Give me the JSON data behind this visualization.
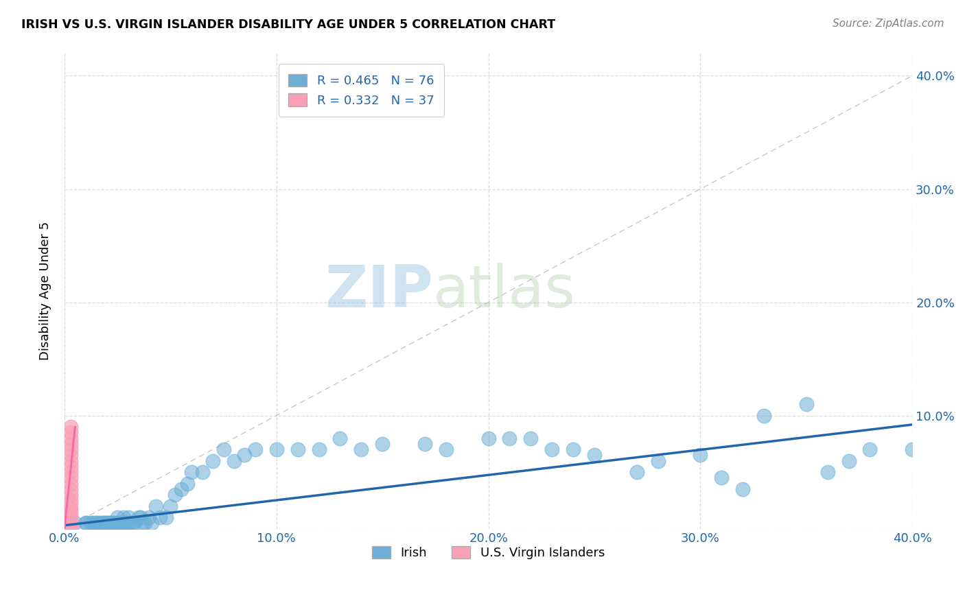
{
  "title": "IRISH VS U.S. VIRGIN ISLANDER DISABILITY AGE UNDER 5 CORRELATION CHART",
  "source": "Source: ZipAtlas.com",
  "ylabel": "Disability Age Under 5",
  "xlabel_blue": "Irish",
  "xlabel_pink": "U.S. Virgin Islanders",
  "xlim": [
    0.0,
    0.4
  ],
  "ylim": [
    0.0,
    0.42
  ],
  "xticks": [
    0.0,
    0.1,
    0.2,
    0.3,
    0.4
  ],
  "yticks": [
    0.0,
    0.1,
    0.2,
    0.3,
    0.4
  ],
  "xtick_labels": [
    "0.0%",
    "10.0%",
    "20.0%",
    "30.0%",
    "40.0%"
  ],
  "ytick_labels": [
    "",
    "10.0%",
    "20.0%",
    "30.0%",
    "40.0%"
  ],
  "blue_color": "#6baed6",
  "pink_color": "#fa9fb5",
  "blue_line_color": "#2166ac",
  "pink_line_color": "#f768a1",
  "grid_color": "#dddddd",
  "R_blue": 0.465,
  "N_blue": 76,
  "R_pink": 0.332,
  "N_pink": 37,
  "blue_scatter_x": [
    0.005,
    0.01,
    0.01,
    0.012,
    0.013,
    0.015,
    0.015,
    0.016,
    0.017,
    0.018,
    0.018,
    0.019,
    0.02,
    0.02,
    0.021,
    0.022,
    0.022,
    0.023,
    0.024,
    0.025,
    0.025,
    0.026,
    0.027,
    0.028,
    0.028,
    0.029,
    0.03,
    0.03,
    0.031,
    0.032,
    0.033,
    0.035,
    0.036,
    0.037,
    0.038,
    0.04,
    0.041,
    0.043,
    0.045,
    0.048,
    0.05,
    0.052,
    0.055,
    0.058,
    0.06,
    0.065,
    0.07,
    0.075,
    0.08,
    0.085,
    0.09,
    0.1,
    0.11,
    0.12,
    0.13,
    0.14,
    0.15,
    0.17,
    0.18,
    0.2,
    0.21,
    0.22,
    0.23,
    0.24,
    0.25,
    0.27,
    0.28,
    0.3,
    0.31,
    0.32,
    0.33,
    0.35,
    0.36,
    0.37,
    0.38,
    0.4
  ],
  "blue_scatter_y": [
    0.005,
    0.005,
    0.005,
    0.005,
    0.005,
    0.005,
    0.005,
    0.005,
    0.005,
    0.005,
    0.005,
    0.005,
    0.005,
    0.005,
    0.005,
    0.005,
    0.005,
    0.005,
    0.005,
    0.005,
    0.01,
    0.005,
    0.005,
    0.005,
    0.01,
    0.005,
    0.005,
    0.01,
    0.005,
    0.005,
    0.005,
    0.01,
    0.01,
    0.005,
    0.005,
    0.01,
    0.005,
    0.02,
    0.01,
    0.01,
    0.02,
    0.03,
    0.035,
    0.04,
    0.05,
    0.05,
    0.06,
    0.07,
    0.06,
    0.065,
    0.07,
    0.07,
    0.07,
    0.07,
    0.08,
    0.07,
    0.075,
    0.075,
    0.07,
    0.08,
    0.08,
    0.08,
    0.07,
    0.07,
    0.065,
    0.05,
    0.06,
    0.065,
    0.045,
    0.035,
    0.1,
    0.11,
    0.05,
    0.06,
    0.07,
    0.07
  ],
  "pink_scatter_x": [
    0.003,
    0.003,
    0.003,
    0.003,
    0.003,
    0.003,
    0.003,
    0.003,
    0.003,
    0.003,
    0.003,
    0.003,
    0.003,
    0.003,
    0.003,
    0.003,
    0.003,
    0.003,
    0.003,
    0.003,
    0.003,
    0.003,
    0.003,
    0.003,
    0.003,
    0.003,
    0.003,
    0.003,
    0.003,
    0.003,
    0.003,
    0.003,
    0.003,
    0.003,
    0.003,
    0.003,
    0.003
  ],
  "pink_scatter_y": [
    0.003,
    0.003,
    0.003,
    0.003,
    0.003,
    0.003,
    0.003,
    0.003,
    0.003,
    0.003,
    0.003,
    0.003,
    0.003,
    0.003,
    0.003,
    0.003,
    0.003,
    0.005,
    0.008,
    0.012,
    0.015,
    0.018,
    0.022,
    0.025,
    0.03,
    0.035,
    0.04,
    0.045,
    0.05,
    0.055,
    0.06,
    0.065,
    0.07,
    0.075,
    0.08,
    0.085,
    0.09
  ],
  "watermark_zip": "ZIP",
  "watermark_atlas": "atlas",
  "watermark_color": "#c8d8e8"
}
